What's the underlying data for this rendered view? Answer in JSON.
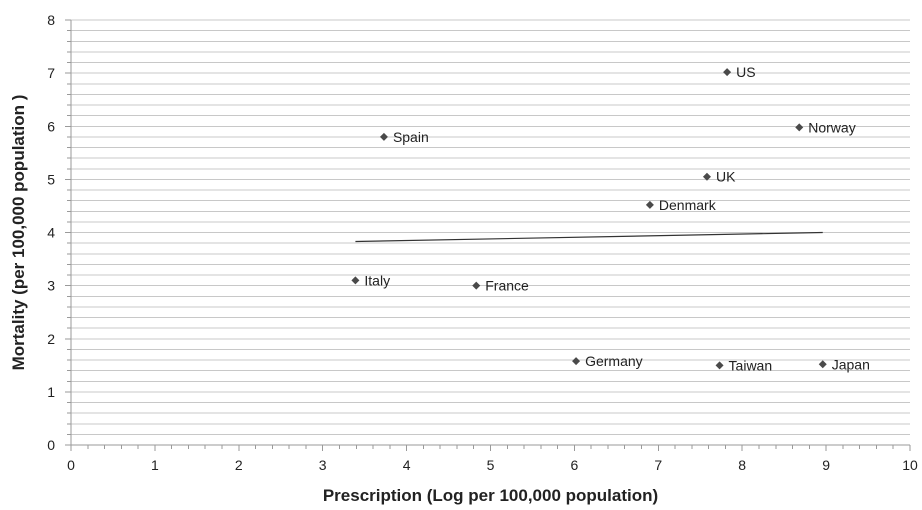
{
  "chart_data": {
    "type": "scatter",
    "title": "",
    "xlabel": "Prescription (Log per 100,000 population)",
    "ylabel": "Mortality (per 100,000 population )",
    "xlim": [
      0,
      10
    ],
    "ylim": [
      0,
      8
    ],
    "x_ticks": [
      "0",
      "1",
      "2",
      "3",
      "4",
      "5",
      "6",
      "7",
      "8",
      "9",
      "10"
    ],
    "y_ticks": [
      "0",
      "1",
      "2",
      "3",
      "4",
      "5",
      "6",
      "7",
      "8"
    ],
    "grid": true,
    "minor_grid_step": 0.2,
    "marker": "diamond",
    "points": [
      {
        "label": "US",
        "x": 7.82,
        "y": 7.02
      },
      {
        "label": "Spain",
        "x": 3.73,
        "y": 5.8
      },
      {
        "label": "Norway",
        "x": 8.68,
        "y": 5.98
      },
      {
        "label": "UK",
        "x": 7.58,
        "y": 5.05
      },
      {
        "label": "Denmark",
        "x": 6.9,
        "y": 4.52
      },
      {
        "label": "Italy",
        "x": 3.39,
        "y": 3.1
      },
      {
        "label": "France",
        "x": 4.83,
        "y": 3.0
      },
      {
        "label": "Germany",
        "x": 6.02,
        "y": 1.58
      },
      {
        "label": "Taiwan",
        "x": 7.73,
        "y": 1.5
      },
      {
        "label": "Japan",
        "x": 8.96,
        "y": 1.52
      }
    ],
    "trendline": {
      "x": [
        3.39,
        8.96
      ],
      "y": [
        3.83,
        4.0
      ]
    },
    "colors": {
      "marker": "#4a4a4a",
      "trendline": "#333333",
      "grid": "#c8c8c8",
      "axis": "#9a9a9a"
    }
  }
}
